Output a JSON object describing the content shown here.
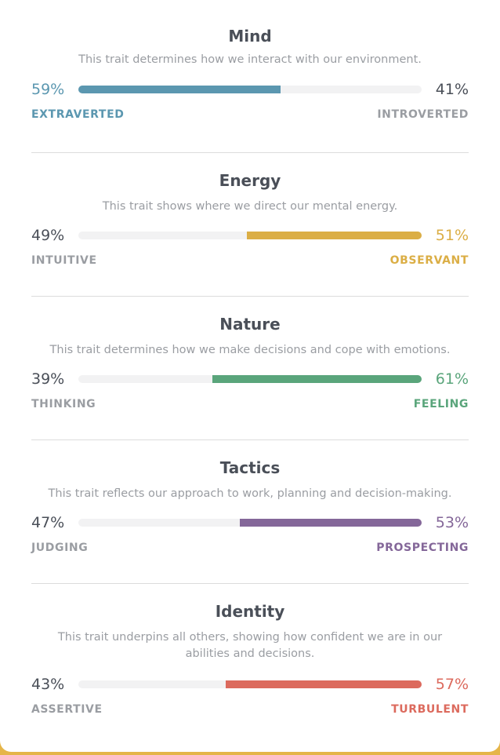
{
  "colors": {
    "mind": "#5b97b0",
    "energy": "#dbae45",
    "nature": "#5aa57b",
    "tactics": "#846799",
    "identity": "#dc6a5d",
    "neutral_text": "#4a4f58",
    "muted_text": "#9a9da2"
  },
  "traits": [
    {
      "title": "Mind",
      "description": "This trait determines how we interact with our environment.",
      "left_percent": "59%",
      "right_percent": "41%",
      "left_label": "EXTRAVERTED",
      "right_label": "INTROVERTED",
      "dominant": "left",
      "dominant_value": 0.59,
      "color_key": "mind"
    },
    {
      "title": "Energy",
      "description": "This trait shows where we direct our mental energy.",
      "left_percent": "49%",
      "right_percent": "51%",
      "left_label": "INTUITIVE",
      "right_label": "OBSERVANT",
      "dominant": "right",
      "dominant_value": 0.51,
      "color_key": "energy"
    },
    {
      "title": "Nature",
      "description": "This trait determines how we make decisions and cope with emotions.",
      "left_percent": "39%",
      "right_percent": "61%",
      "left_label": "THINKING",
      "right_label": "FEELING",
      "dominant": "right",
      "dominant_value": 0.61,
      "color_key": "nature"
    },
    {
      "title": "Tactics",
      "description": "This trait reflects our approach to work, planning and decision-making.",
      "left_percent": "47%",
      "right_percent": "53%",
      "left_label": "JUDGING",
      "right_label": "PROSPECTING",
      "dominant": "right",
      "dominant_value": 0.53,
      "color_key": "tactics"
    },
    {
      "title": "Identity",
      "description": "This trait underpins all others, showing how confident we are in our abilities and decisions.",
      "left_percent": "43%",
      "right_percent": "57%",
      "left_label": "ASSERTIVE",
      "right_label": "TURBULENT",
      "dominant": "right",
      "dominant_value": 0.57,
      "color_key": "identity"
    }
  ]
}
